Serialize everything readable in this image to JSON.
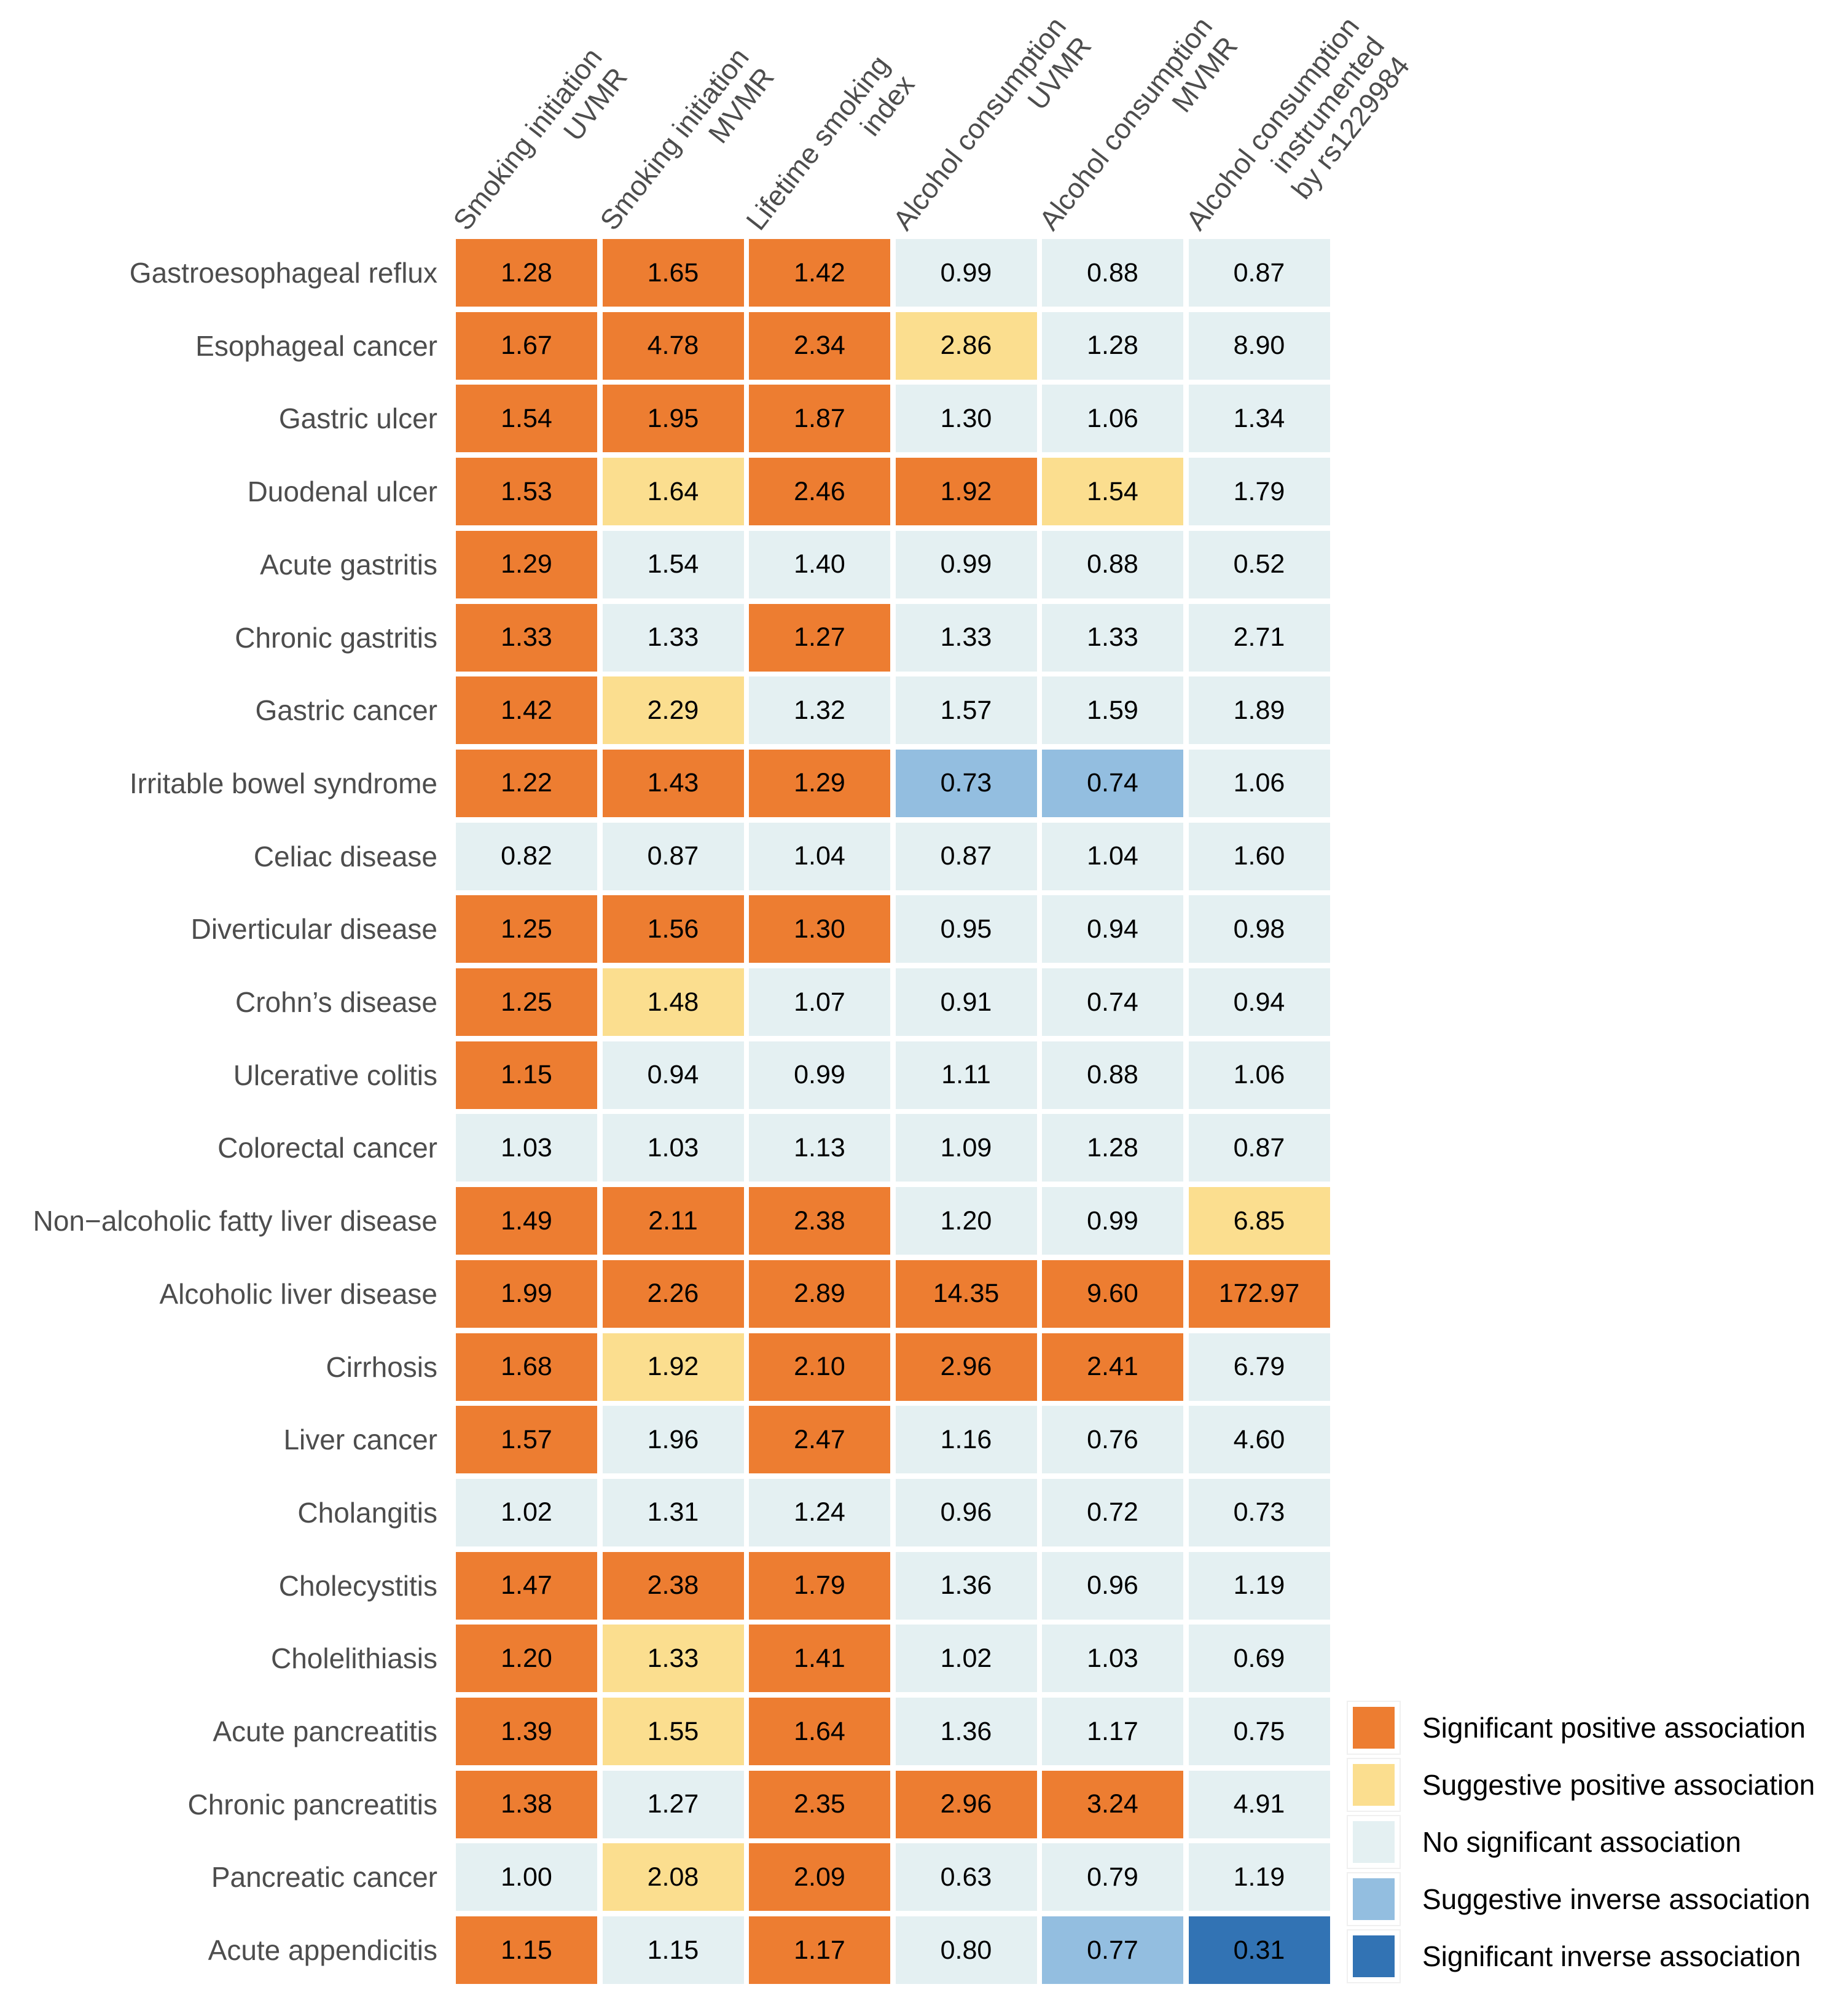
{
  "chart_data": {
    "type": "heatmap",
    "columns": [
      [
        "Smoking initiation",
        "UVMR"
      ],
      [
        "Smoking initiation",
        "MVMR"
      ],
      [
        "Lifetime smoking",
        "index"
      ],
      [
        "Alcohol consumption",
        "UVMR"
      ],
      [
        "Alcohol consumption",
        "MVMR"
      ],
      [
        "Alcohol consumption",
        "instrumented",
        "by rs1229984"
      ]
    ],
    "rows": [
      "Gastroesophageal reflux",
      "Esophageal cancer",
      "Gastric ulcer",
      "Duodenal ulcer",
      "Acute gastritis",
      "Chronic gastritis",
      "Gastric cancer",
      "Irritable bowel syndrome",
      "Celiac disease",
      "Diverticular disease",
      "Crohn’s disease",
      "Ulcerative colitis",
      "Colorectal cancer",
      "Non−alcoholic fatty liver disease",
      "Alcoholic liver disease",
      "Cirrhosis",
      "Liver cancer",
      "Cholangitis",
      "Cholecystitis",
      "Cholelithiasis",
      "Acute pancreatitis",
      "Chronic pancreatitis",
      "Pancreatic cancer",
      "Acute appendicitis"
    ],
    "values": [
      [
        "1.28",
        "1.65",
        "1.42",
        "0.99",
        "0.88",
        "0.87"
      ],
      [
        "1.67",
        "4.78",
        "2.34",
        "2.86",
        "1.28",
        "8.90"
      ],
      [
        "1.54",
        "1.95",
        "1.87",
        "1.30",
        "1.06",
        "1.34"
      ],
      [
        "1.53",
        "1.64",
        "2.46",
        "1.92",
        "1.54",
        "1.79"
      ],
      [
        "1.29",
        "1.54",
        "1.40",
        "0.99",
        "0.88",
        "0.52"
      ],
      [
        "1.33",
        "1.33",
        "1.27",
        "1.33",
        "1.33",
        "2.71"
      ],
      [
        "1.42",
        "2.29",
        "1.32",
        "1.57",
        "1.59",
        "1.89"
      ],
      [
        "1.22",
        "1.43",
        "1.29",
        "0.73",
        "0.74",
        "1.06"
      ],
      [
        "0.82",
        "0.87",
        "1.04",
        "0.87",
        "1.04",
        "1.60"
      ],
      [
        "1.25",
        "1.56",
        "1.30",
        "0.95",
        "0.94",
        "0.98"
      ],
      [
        "1.25",
        "1.48",
        "1.07",
        "0.91",
        "0.74",
        "0.94"
      ],
      [
        "1.15",
        "0.94",
        "0.99",
        "1.11",
        "0.88",
        "1.06"
      ],
      [
        "1.03",
        "1.03",
        "1.13",
        "1.09",
        "1.28",
        "0.87"
      ],
      [
        "1.49",
        "2.11",
        "2.38",
        "1.20",
        "0.99",
        "6.85"
      ],
      [
        "1.99",
        "2.26",
        "2.89",
        "14.35",
        "9.60",
        "172.97"
      ],
      [
        "1.68",
        "1.92",
        "2.10",
        "2.96",
        "2.41",
        "6.79"
      ],
      [
        "1.57",
        "1.96",
        "2.47",
        "1.16",
        "0.76",
        "4.60"
      ],
      [
        "1.02",
        "1.31",
        "1.24",
        "0.96",
        "0.72",
        "0.73"
      ],
      [
        "1.47",
        "2.38",
        "1.79",
        "1.36",
        "0.96",
        "1.19"
      ],
      [
        "1.20",
        "1.33",
        "1.41",
        "1.02",
        "1.03",
        "0.69"
      ],
      [
        "1.39",
        "1.55",
        "1.64",
        "1.36",
        "1.17",
        "0.75"
      ],
      [
        "1.38",
        "1.27",
        "2.35",
        "2.96",
        "3.24",
        "4.91"
      ],
      [
        "1.00",
        "2.08",
        "2.09",
        "0.63",
        "0.79",
        "1.19"
      ],
      [
        "1.15",
        "1.15",
        "1.17",
        "0.80",
        "0.77",
        "0.31"
      ]
    ],
    "categories": [
      [
        0,
        0,
        0,
        2,
        2,
        2
      ],
      [
        0,
        0,
        0,
        1,
        2,
        2
      ],
      [
        0,
        0,
        0,
        2,
        2,
        2
      ],
      [
        0,
        1,
        0,
        0,
        1,
        2
      ],
      [
        0,
        2,
        2,
        2,
        2,
        2
      ],
      [
        0,
        2,
        0,
        2,
        2,
        2
      ],
      [
        0,
        1,
        2,
        2,
        2,
        2
      ],
      [
        0,
        0,
        0,
        3,
        3,
        2
      ],
      [
        2,
        2,
        2,
        2,
        2,
        2
      ],
      [
        0,
        0,
        0,
        2,
        2,
        2
      ],
      [
        0,
        1,
        2,
        2,
        2,
        2
      ],
      [
        0,
        2,
        2,
        2,
        2,
        2
      ],
      [
        2,
        2,
        2,
        2,
        2,
        2
      ],
      [
        0,
        0,
        0,
        2,
        2,
        1
      ],
      [
        0,
        0,
        0,
        0,
        0,
        0
      ],
      [
        0,
        1,
        0,
        0,
        0,
        2
      ],
      [
        0,
        2,
        0,
        2,
        2,
        2
      ],
      [
        2,
        2,
        2,
        2,
        2,
        2
      ],
      [
        0,
        0,
        0,
        2,
        2,
        2
      ],
      [
        0,
        1,
        0,
        2,
        2,
        2
      ],
      [
        0,
        1,
        0,
        2,
        2,
        2
      ],
      [
        0,
        2,
        0,
        0,
        0,
        2
      ],
      [
        2,
        1,
        0,
        2,
        2,
        2
      ],
      [
        0,
        2,
        0,
        2,
        3,
        4
      ]
    ],
    "legend": {
      "position": "bottom-right",
      "items": [
        {
          "label": "Significant positive association",
          "color": "#ED7D31"
        },
        {
          "label": "Suggestive positive association",
          "color": "#FBDE8F"
        },
        {
          "label": "No significant association",
          "color": "#E4F0F2"
        },
        {
          "label": "Suggestive inverse association",
          "color": "#93BEE0"
        },
        {
          "label": "Significant inverse association",
          "color": "#3273B4"
        }
      ]
    }
  }
}
